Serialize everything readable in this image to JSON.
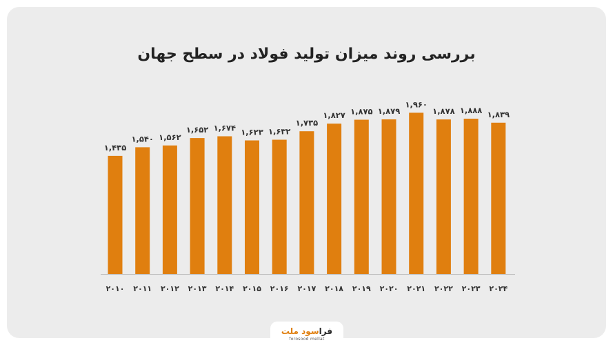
{
  "title": "بررسی روند میزان تولید فولاد در سطح جهان",
  "colors": {
    "bar": "#e07f0f",
    "axis": "#b8b8b8",
    "card": "#ececec"
  },
  "chart_data": {
    "type": "bar",
    "title": "بررسی روند میزان تولید فولاد در سطح جهان",
    "xlabel": "",
    "ylabel": "",
    "ylim": [
      0,
      2000
    ],
    "grid": false,
    "categories": [
      "۲۰۱۰",
      "۲۰۱۱",
      "۲۰۱۲",
      "۲۰۱۳",
      "۲۰۱۴",
      "۲۰۱۵",
      "۲۰۱۶",
      "۲۰۱۷",
      "۲۰۱۸",
      "۲۰۱۹",
      "۲۰۲۰",
      "۲۰۲۱",
      "۲۰۲۲",
      "۲۰۲۳",
      "۲۰۲۴"
    ],
    "values": [
      1435,
      1540,
      1562,
      1652,
      1674,
      1623,
      1632,
      1735,
      1827,
      1875,
      1879,
      1960,
      1878,
      1888,
      1839
    ],
    "value_labels": [
      "۱,۴۳۵",
      "۱,۵۴۰",
      "۱,۵۶۲",
      "۱,۶۵۲",
      "۱,۶۷۴",
      "۱,۶۲۳",
      "۱,۶۳۲",
      "۱,۷۳۵",
      "۱,۸۲۷",
      "۱,۸۷۵",
      "۱,۸۷۹",
      "۱,۹۶۰",
      "۱,۸۷۸",
      "۱,۸۸۸",
      "۱,۸۳۹"
    ]
  },
  "logo": {
    "main_dark": "فرا",
    "main_accent": "سود ملت",
    "sub": "forosood mellat"
  }
}
